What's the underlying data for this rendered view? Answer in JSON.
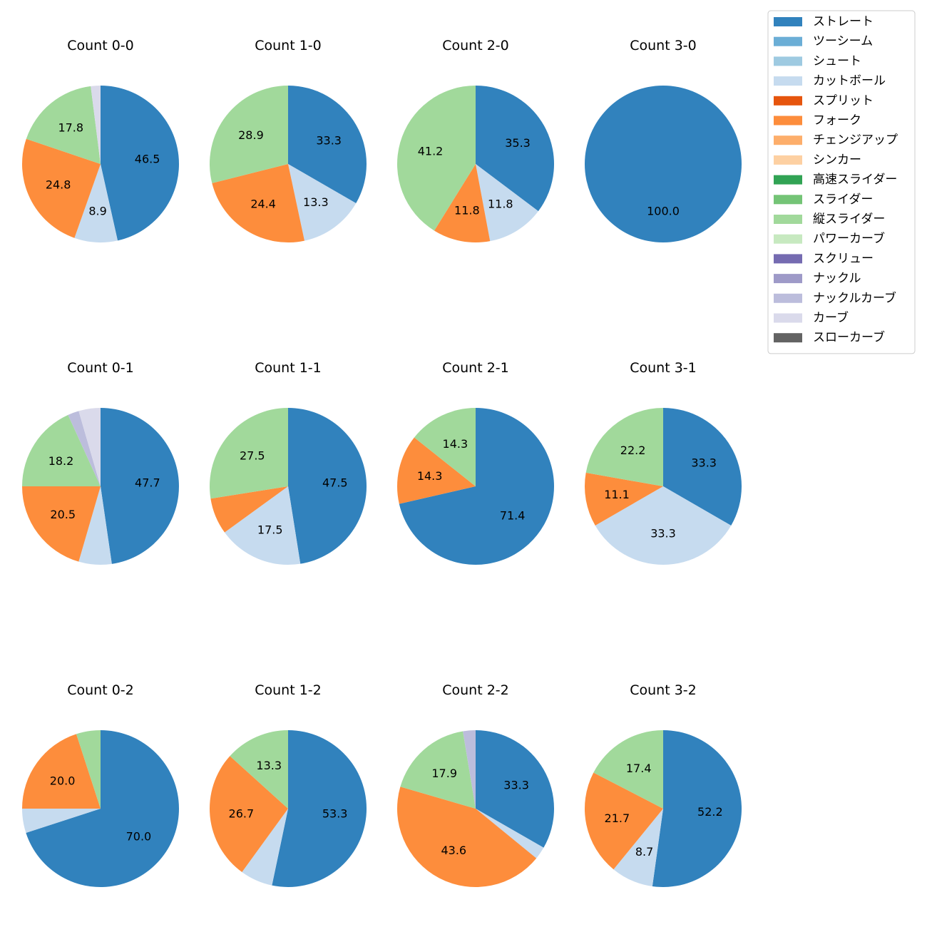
{
  "legend": [
    {
      "name": "ストレート",
      "color": "#3182bd"
    },
    {
      "name": "ツーシーム",
      "color": "#6baed6"
    },
    {
      "name": "シュート",
      "color": "#9ecae1"
    },
    {
      "name": "カットボール",
      "color": "#c6dbef"
    },
    {
      "name": "スプリット",
      "color": "#e6550d"
    },
    {
      "name": "フォーク",
      "color": "#fd8d3c"
    },
    {
      "name": "チェンジアップ",
      "color": "#fdae6b"
    },
    {
      "name": "シンカー",
      "color": "#fdd0a2"
    },
    {
      "name": "高速スライダー",
      "color": "#31a354"
    },
    {
      "name": "スライダー",
      "color": "#74c476"
    },
    {
      "name": "縦スライダー",
      "color": "#a1d99b"
    },
    {
      "name": "パワーカーブ",
      "color": "#c7e9c0"
    },
    {
      "name": "スクリュー",
      "color": "#756bb1"
    },
    {
      "name": "ナックル",
      "color": "#9e9ac8"
    },
    {
      "name": "ナックルカーブ",
      "color": "#bcbddc"
    },
    {
      "name": "カーブ",
      "color": "#dadaeb"
    },
    {
      "name": "スローカーブ",
      "color": "#636363"
    }
  ],
  "chart_data": [
    {
      "type": "pie",
      "title": "Count 0-0",
      "slices": [
        {
          "category": "ストレート",
          "value": 46.5,
          "label": "46.5"
        },
        {
          "category": "カットボール",
          "value": 8.9,
          "label": "8.9"
        },
        {
          "category": "フォーク",
          "value": 24.8,
          "label": "24.8"
        },
        {
          "category": "縦スライダー",
          "value": 17.8,
          "label": "17.8"
        },
        {
          "category": "カーブ",
          "value": 2.0,
          "label": ""
        }
      ]
    },
    {
      "type": "pie",
      "title": "Count 1-0",
      "slices": [
        {
          "category": "ストレート",
          "value": 33.3,
          "label": "33.3"
        },
        {
          "category": "カットボール",
          "value": 13.3,
          "label": "13.3"
        },
        {
          "category": "フォーク",
          "value": 24.4,
          "label": "24.4"
        },
        {
          "category": "縦スライダー",
          "value": 28.9,
          "label": "28.9"
        }
      ]
    },
    {
      "type": "pie",
      "title": "Count 2-0",
      "slices": [
        {
          "category": "ストレート",
          "value": 35.3,
          "label": "35.3"
        },
        {
          "category": "カットボール",
          "value": 11.8,
          "label": "11.8"
        },
        {
          "category": "フォーク",
          "value": 11.8,
          "label": "11.8"
        },
        {
          "category": "縦スライダー",
          "value": 41.2,
          "label": "41.2"
        }
      ]
    },
    {
      "type": "pie",
      "title": "Count 3-0",
      "slices": [
        {
          "category": "ストレート",
          "value": 100.0,
          "label": "100.0"
        }
      ]
    },
    {
      "type": "pie",
      "title": "Count 0-1",
      "slices": [
        {
          "category": "ストレート",
          "value": 47.7,
          "label": "47.7"
        },
        {
          "category": "カットボール",
          "value": 6.8,
          "label": ""
        },
        {
          "category": "フォーク",
          "value": 20.5,
          "label": "20.5"
        },
        {
          "category": "縦スライダー",
          "value": 18.2,
          "label": "18.2"
        },
        {
          "category": "ナックルカーブ",
          "value": 2.3,
          "label": ""
        },
        {
          "category": "カーブ",
          "value": 4.5,
          "label": ""
        }
      ]
    },
    {
      "type": "pie",
      "title": "Count 1-1",
      "slices": [
        {
          "category": "ストレート",
          "value": 47.5,
          "label": "47.5"
        },
        {
          "category": "カットボール",
          "value": 17.5,
          "label": "17.5"
        },
        {
          "category": "フォーク",
          "value": 7.5,
          "label": ""
        },
        {
          "category": "縦スライダー",
          "value": 27.5,
          "label": "27.5"
        }
      ]
    },
    {
      "type": "pie",
      "title": "Count 2-1",
      "slices": [
        {
          "category": "ストレート",
          "value": 71.4,
          "label": "71.4"
        },
        {
          "category": "フォーク",
          "value": 14.3,
          "label": "14.3"
        },
        {
          "category": "縦スライダー",
          "value": 14.3,
          "label": "14.3"
        }
      ]
    },
    {
      "type": "pie",
      "title": "Count 3-1",
      "slices": [
        {
          "category": "ストレート",
          "value": 33.3,
          "label": "33.3"
        },
        {
          "category": "カットボール",
          "value": 33.3,
          "label": "33.3"
        },
        {
          "category": "フォーク",
          "value": 11.1,
          "label": "11.1"
        },
        {
          "category": "縦スライダー",
          "value": 22.2,
          "label": "22.2"
        }
      ]
    },
    {
      "type": "pie",
      "title": "Count 0-2",
      "slices": [
        {
          "category": "ストレート",
          "value": 70.0,
          "label": "70.0"
        },
        {
          "category": "カットボール",
          "value": 5.0,
          "label": ""
        },
        {
          "category": "フォーク",
          "value": 20.0,
          "label": "20.0"
        },
        {
          "category": "縦スライダー",
          "value": 5.0,
          "label": ""
        }
      ]
    },
    {
      "type": "pie",
      "title": "Count 1-2",
      "slices": [
        {
          "category": "ストレート",
          "value": 53.3,
          "label": "53.3"
        },
        {
          "category": "カットボール",
          "value": 6.7,
          "label": ""
        },
        {
          "category": "フォーク",
          "value": 26.7,
          "label": "26.7"
        },
        {
          "category": "縦スライダー",
          "value": 13.3,
          "label": "13.3"
        }
      ]
    },
    {
      "type": "pie",
      "title": "Count 2-2",
      "slices": [
        {
          "category": "ストレート",
          "value": 33.3,
          "label": "33.3"
        },
        {
          "category": "カットボール",
          "value": 2.6,
          "label": ""
        },
        {
          "category": "フォーク",
          "value": 43.6,
          "label": "43.6"
        },
        {
          "category": "縦スライダー",
          "value": 17.9,
          "label": "17.9"
        },
        {
          "category": "ナックルカーブ",
          "value": 2.6,
          "label": ""
        }
      ]
    },
    {
      "type": "pie",
      "title": "Count 3-2",
      "slices": [
        {
          "category": "ストレート",
          "value": 52.2,
          "label": "52.2"
        },
        {
          "category": "カットボール",
          "value": 8.7,
          "label": "8.7"
        },
        {
          "category": "フォーク",
          "value": 21.7,
          "label": "21.7"
        },
        {
          "category": "縦スライダー",
          "value": 17.4,
          "label": "17.4"
        }
      ]
    }
  ]
}
